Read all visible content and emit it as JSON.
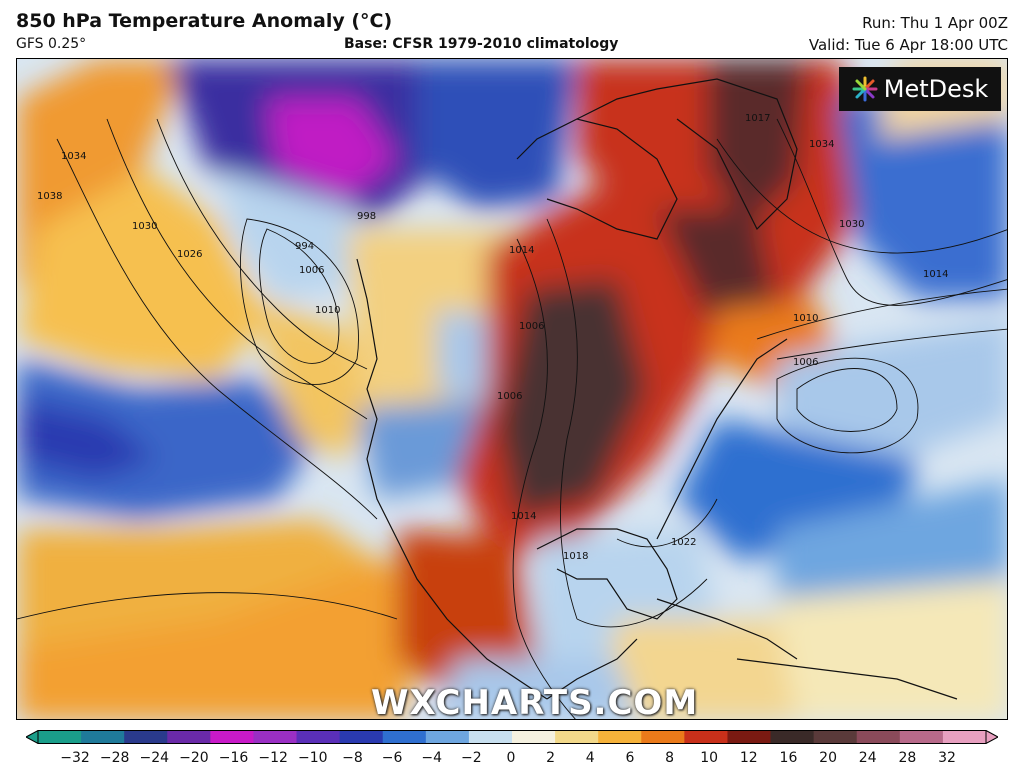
{
  "header": {
    "title": "850 hPa Temperature Anomaly (°C)",
    "model": "GFS 0.25°",
    "base": "Base: CFSR 1979-2010 climatology",
    "run": "Run: Thu 1 Apr 00Z",
    "valid": "Valid: Tue 6 Apr 18:00 UTC"
  },
  "branding": {
    "logo_text": "MetDesk",
    "logo_icon": "starburst-icon",
    "watermark": "WXCHARTS.COM"
  },
  "isobars": [
    "994",
    "998",
    "1006",
    "1010",
    "1026",
    "1030",
    "1034",
    "1038",
    "1014",
    "1034",
    "1030",
    "1014",
    "1010",
    "1006",
    "1006",
    "1006",
    "1014",
    "1018",
    "1022",
    "1017"
  ],
  "colorbar": {
    "ticks": [
      "−32",
      "−28",
      "−24",
      "−20",
      "−16",
      "−12",
      "−10",
      "−8",
      "−6",
      "−4",
      "−2",
      "0",
      "2",
      "4",
      "6",
      "8",
      "10",
      "12",
      "16",
      "20",
      "24",
      "28",
      "32"
    ],
    "colors": [
      "#1a9e8a",
      "#1f7a9a",
      "#2a3a8c",
      "#6a2aa8",
      "#c81ac8",
      "#9a2fc4",
      "#5a2fb8",
      "#2a3ab0",
      "#2f6fd0",
      "#6ea6e0",
      "#c8e0f0",
      "#f5f1e0",
      "#f3d98a",
      "#f6b23a",
      "#ea7a1a",
      "#c8301a",
      "#7a1a12",
      "#3a2a28",
      "#5a3a3a",
      "#8a4a5a",
      "#b86a8a",
      "#e8a0c0"
    ]
  }
}
